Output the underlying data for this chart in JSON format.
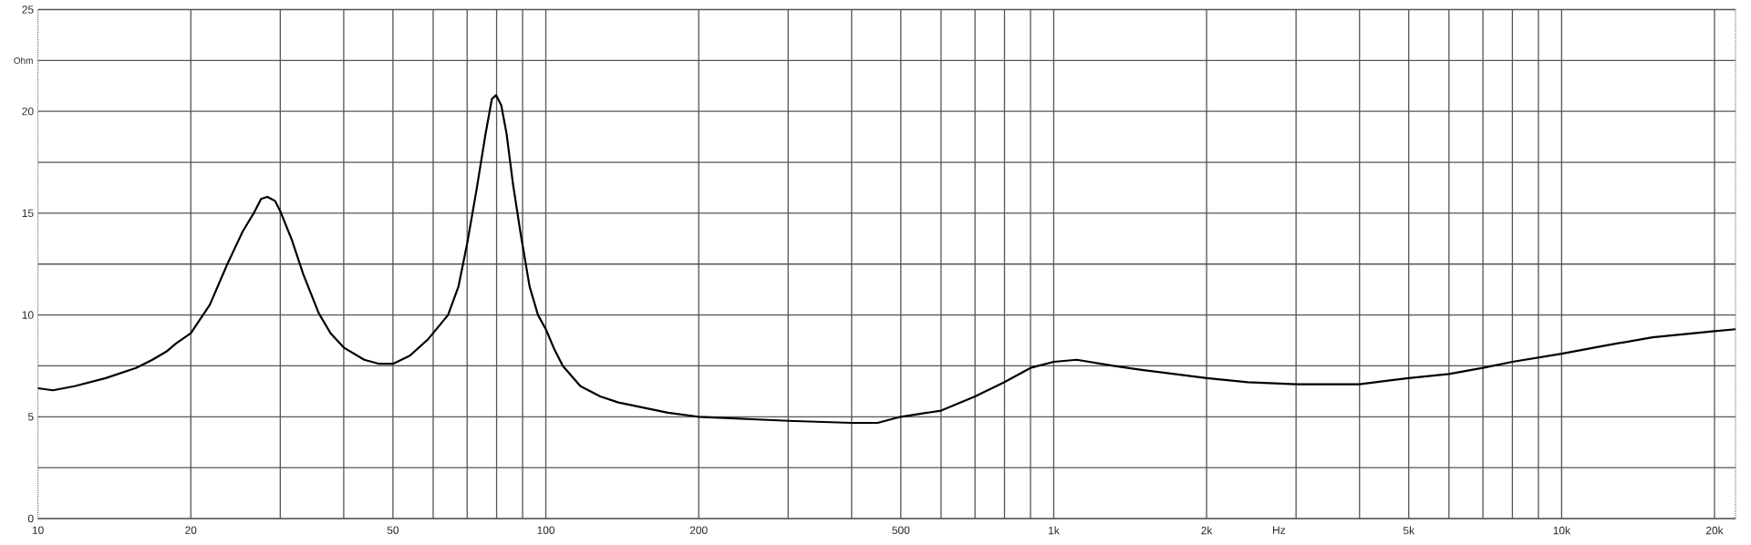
{
  "chart_data": {
    "type": "line",
    "xlabel": "Hz",
    "ylabel": "Ohm",
    "log": "x",
    "grid": true,
    "xlim": [
      10,
      22000
    ],
    "ylim": [
      0,
      25
    ],
    "xticks": [
      10,
      20,
      {
        "value": 30,
        "label": null
      },
      {
        "value": 40,
        "label": null
      },
      50,
      {
        "value": 60,
        "label": null
      },
      {
        "value": 70,
        "label": null
      },
      {
        "value": 80,
        "label": null
      },
      {
        "value": 90,
        "label": null
      },
      100,
      200,
      {
        "value": 300,
        "label": null
      },
      {
        "value": 400,
        "label": null
      },
      500,
      {
        "value": 600,
        "label": null
      },
      {
        "value": 700,
        "label": null
      },
      {
        "value": 800,
        "label": null
      },
      {
        "value": 900,
        "label": null
      },
      {
        "value": 1000,
        "label": "1k"
      },
      {
        "value": 2000,
        "label": "2k"
      },
      {
        "value": 3000,
        "label": null
      },
      {
        "value": 4000,
        "label": null
      },
      {
        "value": 5000,
        "label": "5k"
      },
      {
        "value": 6000,
        "label": null
      },
      {
        "value": 7000,
        "label": null
      },
      {
        "value": 8000,
        "label": null
      },
      {
        "value": 9000,
        "label": null
      },
      {
        "value": 10000,
        "label": "10k"
      },
      {
        "value": 20000,
        "label": "20k"
      }
    ],
    "yticks": [
      0,
      {
        "value": 2.5,
        "label": null
      },
      5,
      {
        "value": 7.5,
        "label": null
      },
      10,
      {
        "value": 12.5,
        "label": null
      },
      15,
      {
        "value": 17.5,
        "label": null
      },
      20,
      {
        "value": 22.5,
        "label": null
      },
      25
    ],
    "series": [
      {
        "color": "#000000",
        "x": [
          10,
          10.7,
          11.8,
          13.6,
          15.6,
          16.8,
          17.9,
          18.7,
          20,
          21.8,
          23.6,
          25.3,
          26.6,
          27.5,
          28.3,
          29.3,
          30,
          31.6,
          33.3,
          35.7,
          37.7,
          40,
          43.9,
          47,
          50,
          54,
          58.6,
          64.2,
          67.3,
          70,
          73.1,
          76.1,
          78.3,
          79.8,
          81.7,
          83.7,
          86.2,
          89.2,
          92.9,
          96.5,
          100,
          104,
          108,
          117,
          128,
          139,
          174,
          200,
          300,
          400,
          450,
          500,
          600,
          700,
          800,
          900,
          1000,
          1110,
          1310,
          1490,
          2000,
          2410,
          3000,
          4000,
          5000,
          6000,
          7000,
          8000,
          10000,
          12200,
          15100,
          20000,
          22000
        ],
        "values": [
          6.4,
          6.3,
          6.5,
          6.9,
          7.4,
          7.8,
          8.2,
          8.6,
          9.1,
          10.5,
          12.5,
          14.1,
          15.0,
          15.7,
          15.8,
          15.6,
          15.1,
          13.7,
          12.0,
          10.1,
          9.1,
          8.4,
          7.8,
          7.6,
          7.6,
          8.0,
          8.8,
          10.0,
          11.4,
          13.5,
          16.2,
          18.9,
          20.6,
          20.8,
          20.3,
          18.9,
          16.4,
          14.0,
          11.4,
          10.0,
          9.3,
          8.3,
          7.5,
          6.5,
          6.0,
          5.7,
          5.2,
          5.0,
          4.8,
          4.7,
          4.7,
          5.0,
          5.3,
          6.0,
          6.7,
          7.4,
          7.7,
          7.8,
          7.5,
          7.3,
          6.9,
          6.7,
          6.6,
          6.6,
          6.9,
          7.1,
          7.4,
          7.7,
          8.1,
          8.5,
          8.9,
          9.2,
          9.3
        ]
      }
    ]
  }
}
